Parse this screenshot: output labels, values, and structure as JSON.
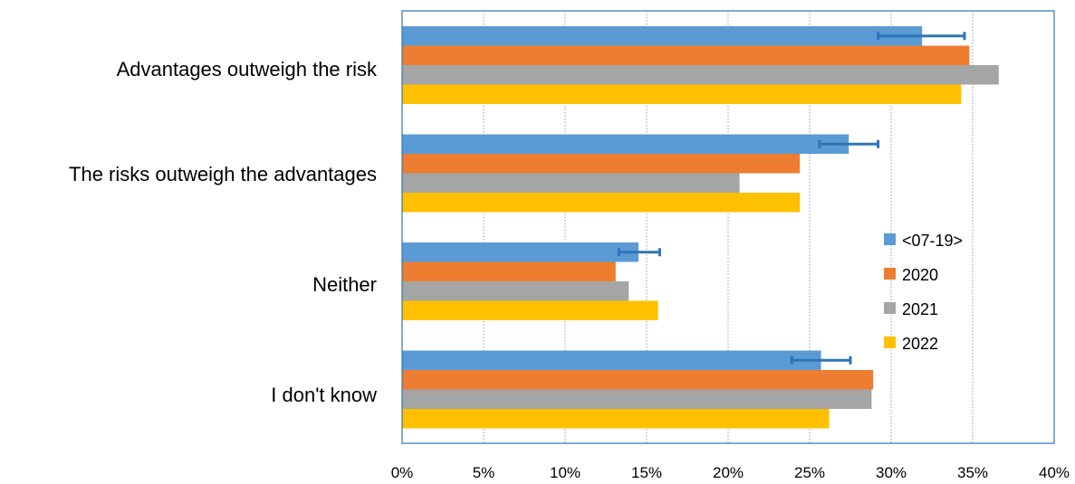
{
  "chart_data": {
    "type": "bar",
    "orientation": "horizontal",
    "categories": [
      "Advantages outweigh the risk",
      "The risks outweigh the advantages",
      "Neither",
      "I don't know"
    ],
    "series": [
      {
        "name": "<07-19>",
        "color": "#5B9BD5",
        "values": [
          31.9,
          27.4,
          14.5,
          25.7
        ],
        "error_low": [
          29.2,
          25.6,
          13.3,
          23.9
        ],
        "error_high": [
          34.5,
          29.2,
          15.8,
          27.5
        ]
      },
      {
        "name": "2020",
        "color": "#ED7D31",
        "values": [
          34.8,
          24.4,
          13.1,
          28.9
        ]
      },
      {
        "name": "2021",
        "color": "#A5A5A5",
        "values": [
          36.6,
          20.7,
          13.9,
          28.8
        ]
      },
      {
        "name": "2022",
        "color": "#FFC000",
        "values": [
          34.3,
          24.4,
          15.7,
          26.2
        ]
      }
    ],
    "xlim": [
      0,
      40
    ],
    "xticks": [
      "0%",
      "5%",
      "10%",
      "15%",
      "20%",
      "25%",
      "30%",
      "35%",
      "40%"
    ],
    "xlabel": "",
    "ylabel": "",
    "title": "",
    "grid": "vertical",
    "legend_position": "right",
    "error_bar_color": "#2E75B6",
    "frame_color": "#2E75B6"
  }
}
